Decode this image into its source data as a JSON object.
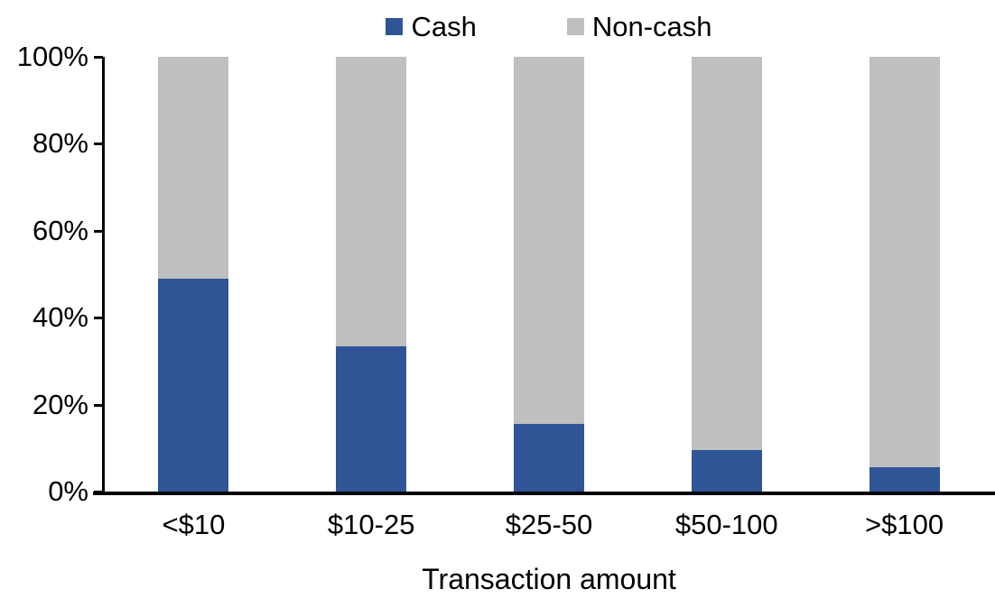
{
  "chart_data": {
    "type": "bar",
    "variant": "stacked-100-percent",
    "title": "",
    "xlabel": "Transaction amount",
    "ylabel": "",
    "categories": [
      "<$10",
      "$10-25",
      "$25-50",
      "$50-100",
      ">$100"
    ],
    "series": [
      {
        "name": "Cash",
        "color": "#2F5596",
        "values": [
          49,
          33.5,
          15.5,
          9.5,
          5.5
        ]
      },
      {
        "name": "Non-cash",
        "color": "#BFBFBF",
        "values": [
          51,
          66.5,
          84.5,
          90.5,
          94.5
        ]
      }
    ],
    "ylim": [
      0,
      100
    ],
    "yticks": [
      "0%",
      "20%",
      "40%",
      "60%",
      "80%",
      "100%"
    ],
    "ytick_values": [
      0,
      20,
      40,
      60,
      80,
      100
    ],
    "legend_position": "top-center",
    "grid": false,
    "axis_color": "#000000",
    "background_color": "#FFFFFF"
  }
}
